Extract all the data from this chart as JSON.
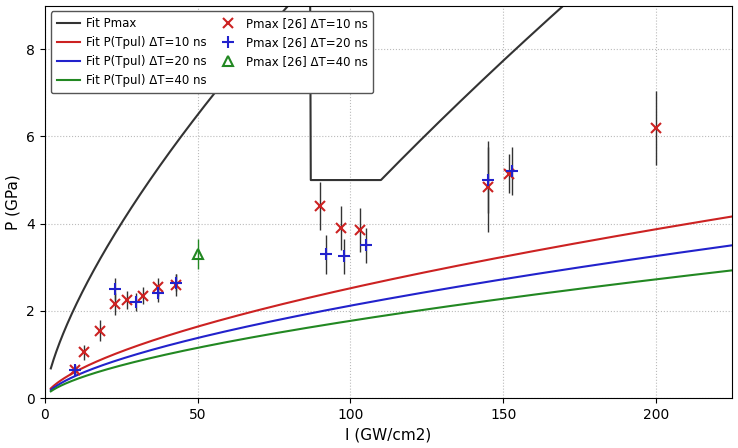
{
  "xlim": [
    0,
    225
  ],
  "ylim": [
    0,
    9
  ],
  "xlabel": "I (GW/cm2)",
  "ylabel": "P (GPa)",
  "grid_color": "#bbbbbb",
  "bg_color": "#ffffff",
  "fit_pmax_color": "#333333",
  "fit_10ns_color": "#cc2222",
  "fit_20ns_color": "#2222cc",
  "fit_40ns_color": "#228822",
  "pmax10_color": "#cc2222",
  "pmax20_color": "#2222cc",
  "pmax40_color": "#228822",
  "legend_entries": [
    "Fit Pmax",
    "Fit P(Tpul) ΔT=10 ns",
    "Fit P(Tpul) ΔT=20 ns",
    "Fit P(Tpul) ΔT=40 ns",
    "Pmax [26] ΔT=10 ns",
    "Pmax [26] ΔT=20 ns",
    "Pmax [26] ΔT=40 ns"
  ],
  "pmax10_data": {
    "x": [
      10,
      13,
      18,
      23,
      27,
      32,
      37,
      43,
      90,
      97,
      103,
      145,
      152,
      200
    ],
    "y": [
      0.65,
      1.05,
      1.55,
      2.15,
      2.25,
      2.35,
      2.55,
      2.6,
      4.4,
      3.9,
      3.85,
      4.85,
      5.15,
      6.2
    ],
    "yerr": [
      0.1,
      0.18,
      0.25,
      0.25,
      0.2,
      0.2,
      0.2,
      0.25,
      0.55,
      0.5,
      0.5,
      1.05,
      0.45,
      0.85
    ]
  },
  "pmax20_data": {
    "x": [
      10,
      23,
      30,
      37,
      43,
      92,
      98,
      105,
      145,
      153
    ],
    "y": [
      0.65,
      2.5,
      2.2,
      2.4,
      2.65,
      3.3,
      3.25,
      3.5,
      5.0,
      5.2
    ],
    "yerr": [
      0.1,
      0.25,
      0.2,
      0.2,
      0.2,
      0.45,
      0.4,
      0.4,
      0.75,
      0.55
    ]
  },
  "pmax40_data": {
    "x": [
      50
    ],
    "y": [
      3.3
    ],
    "yerr": [
      0.35
    ]
  },
  "fit_pmax_A": 0.42,
  "fit_pmax_alpha": 0.7,
  "fit_pmax_flat_x1": 87,
  "fit_pmax_flat_x2": 110,
  "fit_pmax_flat_y": 5.0,
  "fit_10ns_A": 0.145,
  "fit_20ns_A": 0.122,
  "fit_40ns_A": 0.102,
  "fit_alpha": 0.62,
  "xticks": [
    0,
    50,
    100,
    150,
    200
  ],
  "yticks": [
    0,
    2,
    4,
    6,
    8
  ]
}
